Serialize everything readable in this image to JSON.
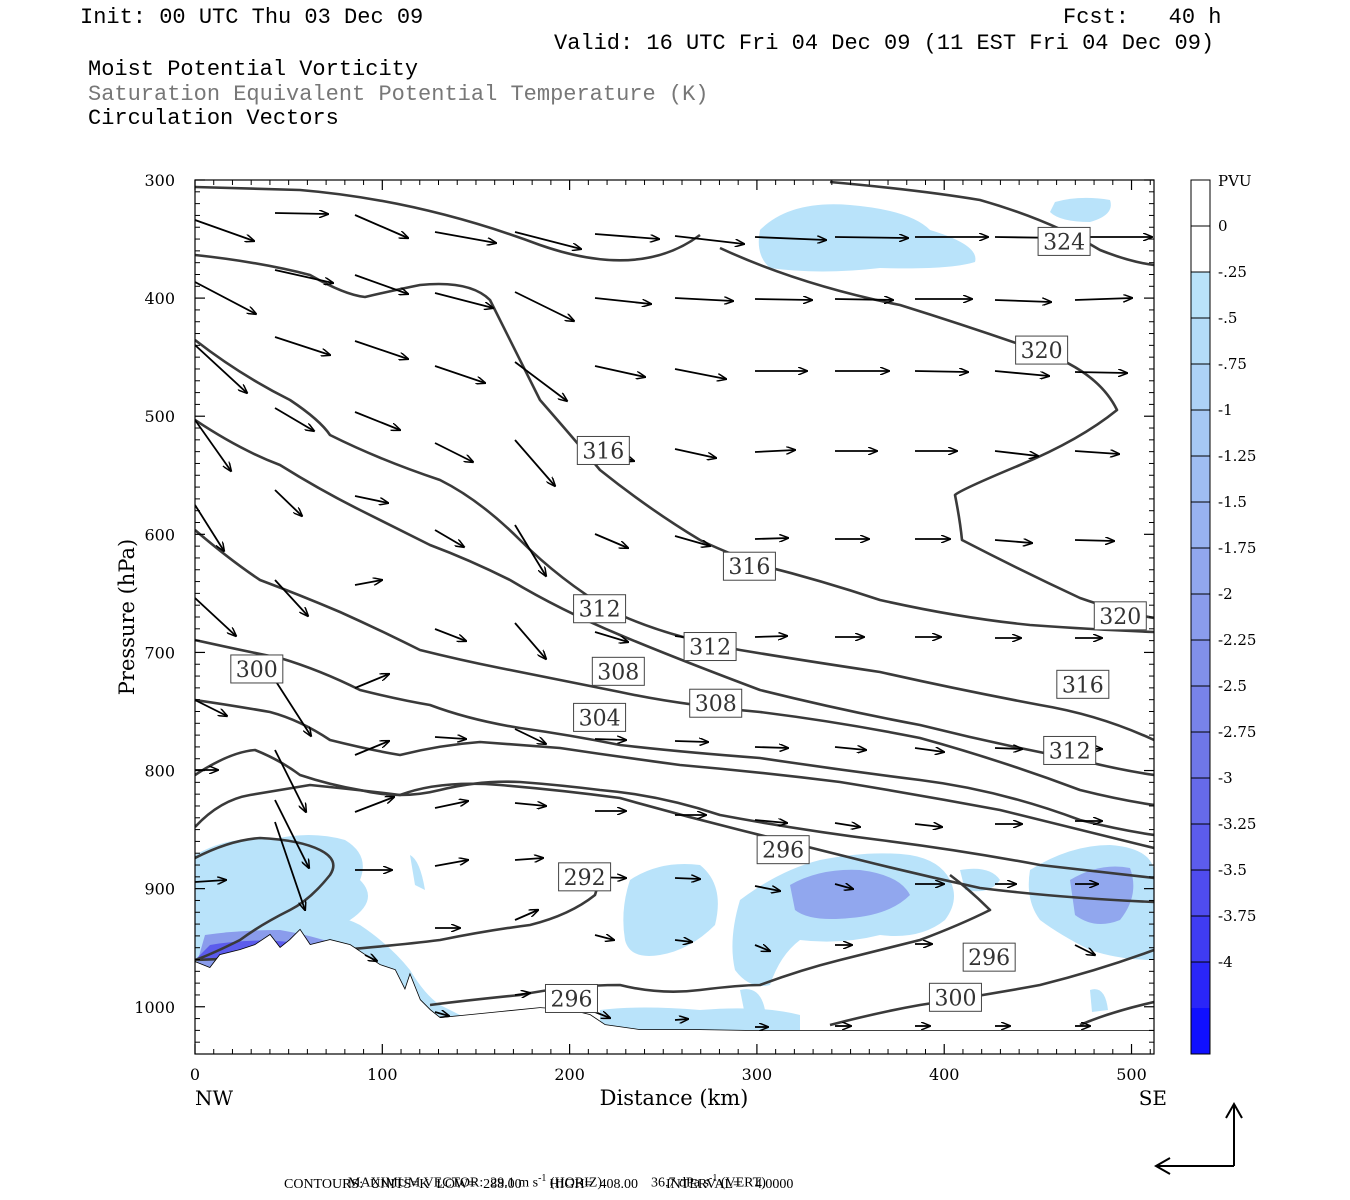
{
  "header": {
    "init": "Init: 00 UTC Thu 03 Dec 09",
    "fcst": "Fcst:   40 h",
    "valid": "Valid: 16 UTC Fri 04 Dec 09 (11 EST Fri 04 Dec 09)",
    "field1": "Moist Potential Vorticity",
    "field2": "Saturation Equivalent Potential Temperature (K)",
    "field3": "Circulation Vectors"
  },
  "chart_data": {
    "type": "contour-cross-section",
    "xlabel": "Distance (km)",
    "ylabel": "Pressure (hPa)",
    "xlim": [
      0,
      512
    ],
    "ylim": [
      1040,
      300
    ],
    "x_ticks": [
      0,
      100,
      200,
      300,
      400,
      500
    ],
    "y_ticks": [
      300,
      400,
      500,
      600,
      700,
      800,
      900,
      1000
    ],
    "left_endpoint": "NW",
    "right_endpoint": "SE",
    "colorbar": {
      "unit": "PVU",
      "labels": [
        "0",
        "-.25",
        "-.5",
        "-.75",
        "-1",
        "-1.25",
        "-1.5",
        "-1.75",
        "-2",
        "-2.25",
        "-2.5",
        "-2.75",
        "-3",
        "-3.25",
        "-3.5",
        "-3.75",
        "-4"
      ],
      "colors": [
        "#ffffff",
        "#ffffff",
        "#b9e3fa",
        "#b4dcf8",
        "#add2f6",
        "#a6c8f4",
        "#9fbdf2",
        "#98b2f0",
        "#91a7ee",
        "#8a9cec",
        "#8190ea",
        "#7883e9",
        "#6f77e8",
        "#666aea",
        "#5c5cec",
        "#4f4cef",
        "#3f3cf3",
        "#2a26f8",
        "#1010ff"
      ]
    },
    "contour_labels": [
      {
        "text": "324",
        "x": 464,
        "p": 352
      },
      {
        "text": "320",
        "x": 452,
        "p": 444
      },
      {
        "text": "316",
        "x": 218,
        "p": 529
      },
      {
        "text": "316",
        "x": 296,
        "p": 627
      },
      {
        "text": "320",
        "x": 494,
        "p": 669
      },
      {
        "text": "312",
        "x": 216,
        "p": 663
      },
      {
        "text": "312",
        "x": 275,
        "p": 695
      },
      {
        "text": "308",
        "x": 226,
        "p": 716
      },
      {
        "text": "316",
        "x": 474,
        "p": 727
      },
      {
        "text": "308",
        "x": 278,
        "p": 743
      },
      {
        "text": "304",
        "x": 216,
        "p": 755
      },
      {
        "text": "312",
        "x": 467,
        "p": 783
      },
      {
        "text": "300",
        "x": 33,
        "p": 714
      },
      {
        "text": "296",
        "x": 314,
        "p": 867
      },
      {
        "text": "292",
        "x": 208,
        "p": 890
      },
      {
        "text": "296",
        "x": 424,
        "p": 958
      },
      {
        "text": "300",
        "x": 406,
        "p": 992
      },
      {
        "text": "296",
        "x": 201,
        "p": 993
      }
    ],
    "max_vector_label": "MAXIMUM VECTOR:",
    "max_horiz_value": "29.1",
    "max_horiz_unit": "m s",
    "exp": "-1",
    "max_horiz_kind": "(HORIZ)",
    "max_vert_value": "36.7",
    "max_vert_unit": "dPa s",
    "max_vert_kind": "(VERT)",
    "contours_info": "CONTOURS:  UNITS=K  LOW=  288.00        HIGH=  408.00        INTERVAL=    4.0000"
  }
}
